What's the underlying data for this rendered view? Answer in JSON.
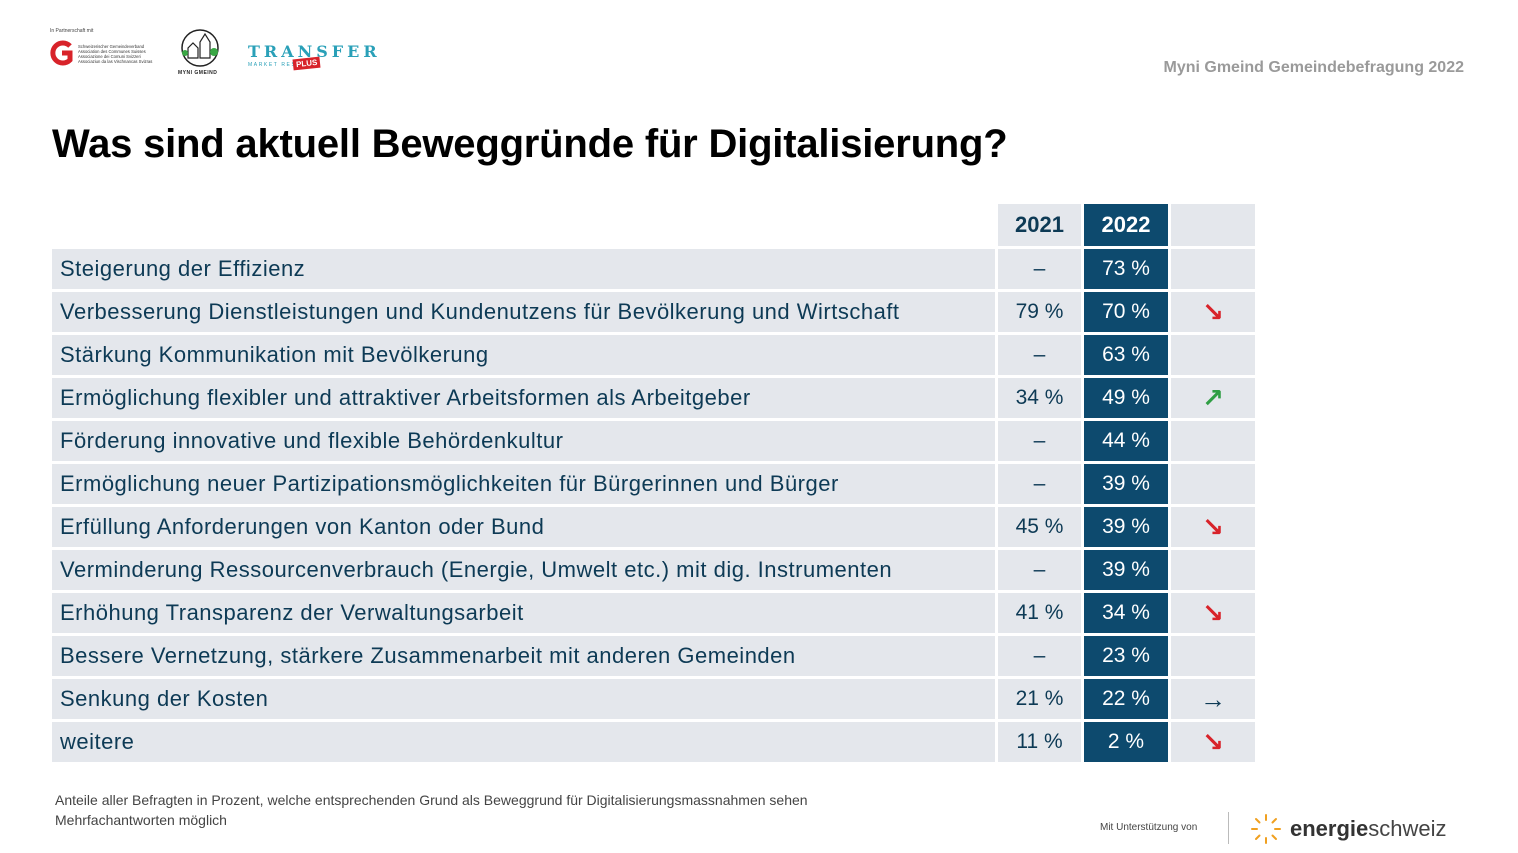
{
  "header": {
    "partner_note": "In Partnerschaft mit",
    "sgv_lines": [
      "Schweizerischer Gemeindeverband",
      "Association des Communes Suisses",
      "Associazione dei Comuni Svizzeri",
      "Associaziun da las Vischnancas Svizras"
    ],
    "myni_caption": "MYNI GMEIND",
    "transfer_big": "TRANSFER",
    "transfer_small": "MARKET        RESEARCH",
    "transfer_plus": "PLUS",
    "survey_label": "Myni Gmeind Gemeindebefragung 2022"
  },
  "title": "Was sind aktuell Beweggründe für Digitalisierung?",
  "table": {
    "col_2021": "2021",
    "col_2022": "2022",
    "rows": [
      {
        "label": "Steigerung der Effizienz",
        "v2021": "–",
        "v2022": "73 %",
        "trend": "",
        "trend_type": "none"
      },
      {
        "label": "Verbesserung Dienstleistungen und Kundenutzens für Bevölkerung und Wirtschaft",
        "v2021": "79 %",
        "v2022": "70 %",
        "trend": "↘",
        "trend_type": "down"
      },
      {
        "label": "Stärkung Kommunikation mit Bevölkerung",
        "v2021": "–",
        "v2022": "63 %",
        "trend": "",
        "trend_type": "none"
      },
      {
        "label": "Ermöglichung flexibler und attraktiver Arbeitsformen als Arbeitgeber",
        "v2021": "34 %",
        "v2022": "49 %",
        "trend": "↗",
        "trend_type": "up"
      },
      {
        "label": "Förderung innovative und flexible Behördenkultur",
        "v2021": "–",
        "v2022": "44 %",
        "trend": "",
        "trend_type": "none"
      },
      {
        "label": "Ermöglichung neuer Partizipationsmöglichkeiten für Bürgerinnen und Bürger",
        "v2021": "–",
        "v2022": "39 %",
        "trend": "",
        "trend_type": "none"
      },
      {
        "label": "Erfüllung Anforderungen von Kanton oder Bund",
        "v2021": "45 %",
        "v2022": "39 %",
        "trend": "↘",
        "trend_type": "down"
      },
      {
        "label": "Verminderung Ressourcenverbrauch (Energie, Umwelt etc.) mit dig. Instrumenten",
        "v2021": "–",
        "v2022": "39 %",
        "trend": "",
        "trend_type": "none"
      },
      {
        "label": "Erhöhung Transparenz der Verwaltungsarbeit",
        "v2021": "41 %",
        "v2022": "34 %",
        "trend": "↘",
        "trend_type": "down"
      },
      {
        "label": "Bessere Vernetzung, stärkere Zusammenarbeit mit anderen Gemeinden",
        "v2021": "–",
        "v2022": "23 %",
        "trend": "",
        "trend_type": "none"
      },
      {
        "label": "Senkung der Kosten",
        "v2021": "21 %",
        "v2022": "22 %",
        "trend": "→",
        "trend_type": "flat"
      },
      {
        "label": "weitere",
        "v2021": "11 %",
        "v2022": "2 %",
        "trend": "↘",
        "trend_type": "down"
      }
    ]
  },
  "footnote": {
    "line1": "Anteile aller Befragten in Prozent, welche entsprechenden Grund als Beweggrund für Digitalisierungsmassnahmen sehen",
    "line2": "Mehrfachantworten möglich"
  },
  "footer": {
    "support_label": "Mit Unterstützung von",
    "energie_bold": "energie",
    "energie_rest": "schweiz"
  },
  "colors": {
    "accent_dark": "#0d4a6e",
    "row_bg": "#e4e7ec",
    "trend_down": "#d8232a",
    "trend_up": "#2f9e44"
  }
}
